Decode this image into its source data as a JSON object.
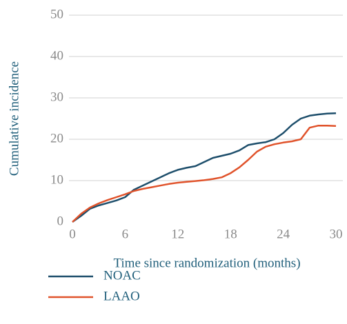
{
  "chart_data": {
    "type": "line",
    "x_label": "Time since randomization (months)",
    "y_label": "Cumulative incidence",
    "x": [
      0,
      1,
      2,
      3,
      4,
      5,
      6,
      7,
      8,
      9,
      10,
      11,
      12,
      13,
      14,
      15,
      16,
      17,
      18,
      19,
      20,
      21,
      22,
      23,
      24,
      25,
      26,
      27,
      28,
      29,
      30
    ],
    "series": [
      {
        "name": "NOAC",
        "color": "#1d4e6b",
        "values": [
          0,
          1.5,
          3.2,
          4,
          4.6,
          5.2,
          6,
          7.8,
          8.8,
          9.8,
          10.8,
          11.8,
          12.6,
          13.1,
          13.5,
          14.5,
          15.5,
          16,
          16.5,
          17.3,
          18.6,
          19,
          19.3,
          20,
          21.5,
          23.5,
          25,
          25.7,
          26,
          26.2,
          26.3
        ]
      },
      {
        "name": "LAAO",
        "color": "#e0522a",
        "values": [
          0,
          2,
          3.5,
          4.5,
          5.3,
          6,
          6.7,
          7.5,
          8,
          8.4,
          8.8,
          9.2,
          9.5,
          9.7,
          9.9,
          10.1,
          10.4,
          10.8,
          11.8,
          13.2,
          15,
          17,
          18.2,
          18.8,
          19.2,
          19.5,
          20,
          22.8,
          23.3,
          23.3,
          23.2
        ]
      }
    ],
    "xlim": [
      0,
      30
    ],
    "xticks": [
      0,
      6,
      12,
      18,
      24,
      30
    ],
    "ylim": [
      0,
      50
    ],
    "yticks": [
      0,
      10,
      20,
      30,
      40,
      50
    ],
    "grid": true
  }
}
